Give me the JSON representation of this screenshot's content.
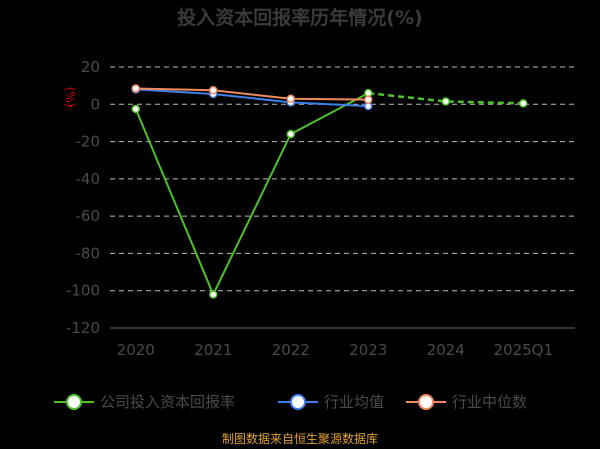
{
  "chart_data": {
    "type": "line",
    "title": "投入资本回报率历年情况(%)",
    "unit_label": "(%)",
    "categories": [
      "2020",
      "2021",
      "2022",
      "2023",
      "2024",
      "2025Q1"
    ],
    "ylim": [
      -120,
      20
    ],
    "yticks": [
      20,
      0,
      -20,
      -40,
      -60,
      -80,
      -100,
      -120
    ],
    "grid": true,
    "legend_position": "bottom",
    "series": [
      {
        "name": "公司投入资本回报率",
        "color": "#4dc22a",
        "values": [
          -2.5,
          -102,
          -16,
          6,
          1.5,
          0.5
        ]
      },
      {
        "name": "行业均值",
        "color": "#3f7fe8",
        "values": [
          8,
          5.5,
          1,
          -1,
          null,
          null
        ]
      },
      {
        "name": "行业中位数",
        "color": "#f08a5d",
        "values": [
          8.5,
          7.5,
          3,
          2.5,
          null,
          null
        ]
      }
    ]
  },
  "source": "制图数据来自恒生聚源数据库"
}
